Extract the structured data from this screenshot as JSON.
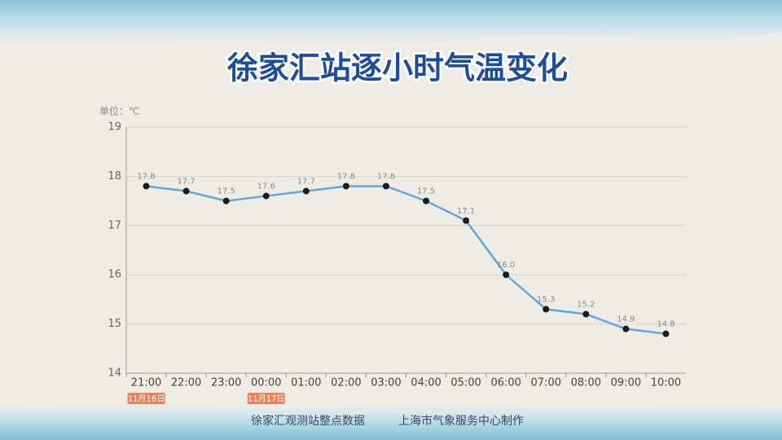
{
  "chart_data": {
    "type": "line",
    "title": "徐家汇站逐小时气温变化",
    "unit_label": "单位：℃",
    "categories": [
      "21:00",
      "22:00",
      "23:00",
      "00:00",
      "01:00",
      "02:00",
      "03:00",
      "04:00",
      "05:00",
      "06:00",
      "07:00",
      "08:00",
      "09:00",
      "10:00"
    ],
    "date_labels": [
      "11月16日",
      null,
      null,
      "11月17日",
      null,
      null,
      null,
      null,
      null,
      null,
      null,
      null,
      null,
      null
    ],
    "values": [
      17.8,
      17.7,
      17.5,
      17.6,
      17.7,
      17.8,
      17.8,
      17.5,
      17.1,
      16.0,
      15.3,
      15.2,
      14.9,
      14.8
    ],
    "value_labels": [
      "17.8",
      "17.7",
      "17.5",
      "17.6",
      "17.7",
      "17.8",
      "17.8",
      "17.5",
      "17.1",
      "16.0",
      "15.3",
      "15.2",
      "14.9",
      "14.8"
    ],
    "color": "#5ea7e2",
    "marker_color": "#1a1a1a",
    "ylim": [
      14,
      19
    ],
    "yticks": [
      14,
      15,
      16,
      17,
      18,
      19
    ],
    "grid": true,
    "footer": [
      "徐家汇观测站整点数据",
      "上海市气象服务中心制作"
    ]
  }
}
